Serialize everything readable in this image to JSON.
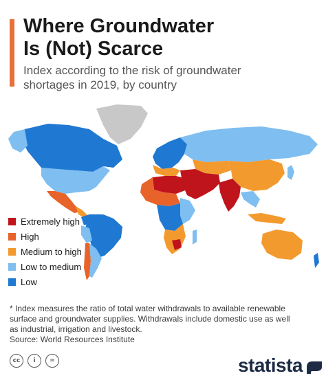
{
  "header": {
    "title": "Where Groundwater\nIs (Not) Scarce",
    "subtitle": "Index according to the risk of groundwater\nshortages in 2019, by country",
    "accent_color": "#e8703a"
  },
  "legend": {
    "items": [
      {
        "label": "Extremely high",
        "color": "#c0141c"
      },
      {
        "label": "High",
        "color": "#e8632a"
      },
      {
        "label": "Medium to high",
        "color": "#f39a2e"
      },
      {
        "label": "Low to medium",
        "color": "#7fbef0"
      },
      {
        "label": "Low",
        "color": "#1f78d1"
      }
    ],
    "no_data_color": "#c8c8c8"
  },
  "map": {
    "regions": [
      {
        "region": "Greenland",
        "category": "no data"
      },
      {
        "region": "Canada",
        "category": "Low"
      },
      {
        "region": "United States",
        "category": "Low to medium"
      },
      {
        "region": "Mexico",
        "category": "High"
      },
      {
        "region": "Brazil",
        "category": "Low"
      },
      {
        "region": "Argentina",
        "category": "Low to medium"
      },
      {
        "region": "Chile",
        "category": "High"
      },
      {
        "region": "Russia",
        "category": "Low to medium"
      },
      {
        "region": "Northern Europe",
        "category": "Low"
      },
      {
        "region": "North Africa",
        "category": "Extremely high"
      },
      {
        "region": "Sahel",
        "category": "High"
      },
      {
        "region": "Central Africa",
        "category": "Low"
      },
      {
        "region": "Southern Africa",
        "category": "Medium to high"
      },
      {
        "region": "Middle East",
        "category": "Extremely high"
      },
      {
        "region": "India",
        "category": "Extremely high"
      },
      {
        "region": "China",
        "category": "Medium to high"
      },
      {
        "region": "Southeast Asia",
        "category": "Low to medium"
      },
      {
        "region": "Australia",
        "category": "Medium to high"
      },
      {
        "region": "New Zealand",
        "category": "Low"
      }
    ]
  },
  "footnote": "* Index measures the ratio of total water withdrawals to available renewable\nsurface and groundwater supplies. Withdrawals include domestic use as well\nas industrial, irrigation and livestock.",
  "source": "Source: World Resources Institute",
  "footer": {
    "brand": "statista",
    "brand_color": "#1e2b45",
    "license_icons": [
      "cc-icon",
      "by-icon",
      "nd-icon"
    ],
    "license_glyphs": [
      "cc",
      "i",
      "="
    ]
  }
}
